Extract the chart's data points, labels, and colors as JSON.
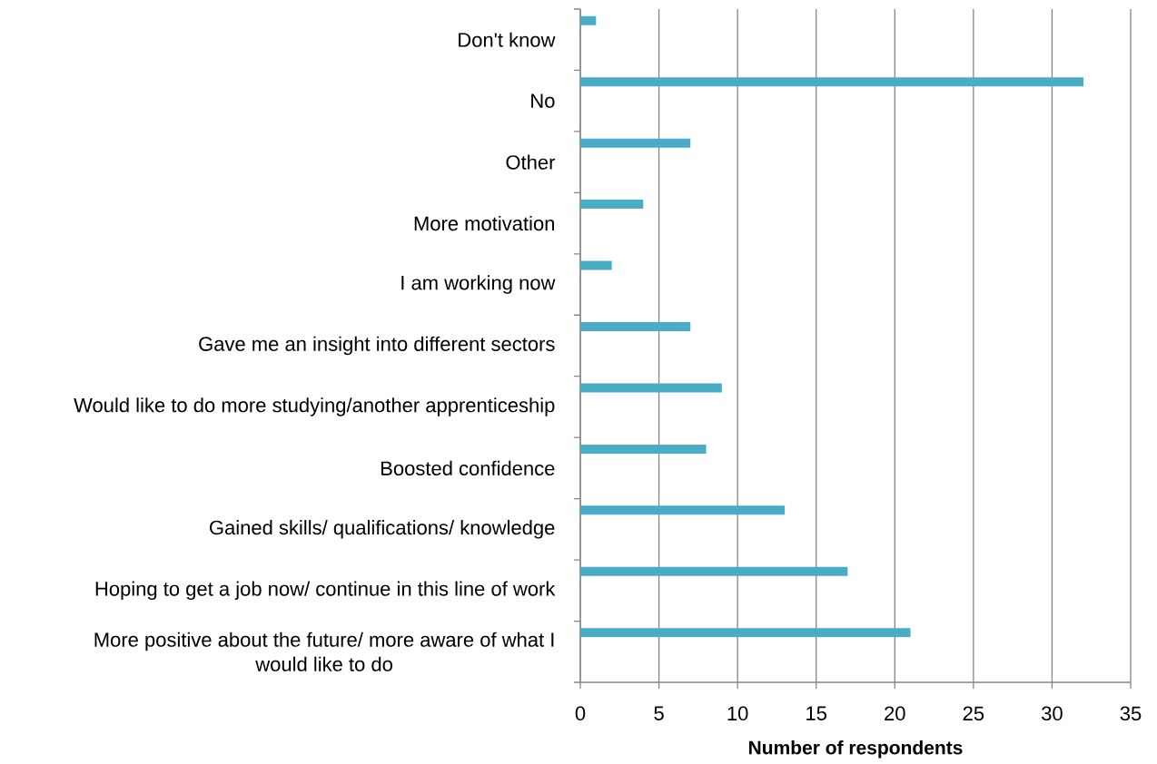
{
  "chart_data": {
    "type": "bar",
    "orientation": "horizontal",
    "categories": [
      "Don't know",
      "No",
      "Other",
      "More motivation",
      "I am working now",
      "Gave me an insight into different sectors",
      "Would like to do more studying/another apprenticeship",
      "Boosted confidence",
      "Gained skills/ qualifications/ knowledge",
      "Hoping to get a job now/ continue in this line of work",
      "More positive about the future/ more aware of what I would like to do"
    ],
    "values": [
      1,
      32,
      7,
      4,
      2,
      7,
      9,
      8,
      13,
      17,
      21
    ],
    "color": "#4bacc6",
    "xlabel": "Number of respondents",
    "xlim": [
      0,
      35
    ],
    "xticks": [
      0,
      5,
      10,
      15,
      20,
      25,
      30,
      35
    ],
    "grid": "x"
  }
}
